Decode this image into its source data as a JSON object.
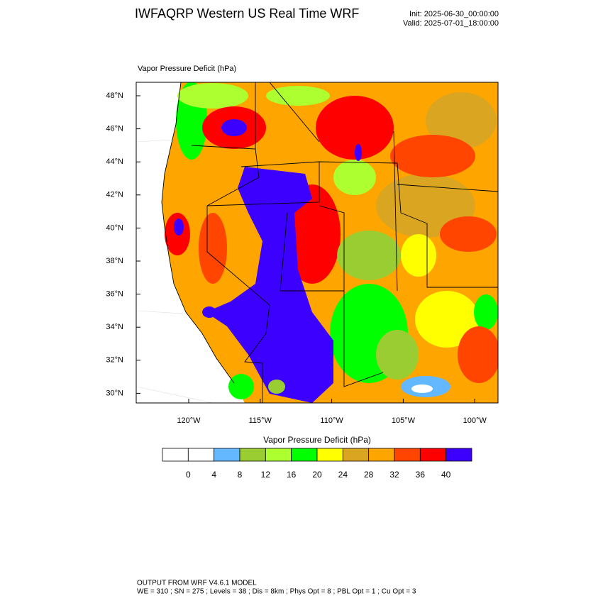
{
  "header": {
    "title": "IWFAQRP Western US Real Time WRF",
    "init": "Init: 2025-06-30_00:00:00",
    "valid": "Valid: 2025-07-01_18:00:00"
  },
  "map": {
    "field_label": "Vapor Pressure Deficit   (hPa)",
    "lat_labels": [
      "48°N",
      "46°N",
      "44°N",
      "42°N",
      "40°N",
      "38°N",
      "36°N",
      "34°N",
      "32°N",
      "30°N"
    ],
    "lon_labels": [
      "120°W",
      "115°W",
      "110°W",
      "105°W",
      "100°W"
    ]
  },
  "colorbar": {
    "title": "Vapor Pressure Deficit  (hPa)",
    "levels": [
      0,
      4,
      8,
      12,
      16,
      20,
      24,
      28,
      32,
      36,
      40
    ],
    "colors": [
      "#ffffff",
      "#ffffff",
      "#63b8ff",
      "#9acd32",
      "#adff2f",
      "#00ff00",
      "#ffff00",
      "#daa520",
      "#ffa500",
      "#ff4500",
      "#ff0000",
      "#3c00ff"
    ]
  },
  "footer": {
    "line1": "OUTPUT FROM WRF V4.6.1 MODEL",
    "line2": "WE = 310 ; SN = 275 ; Levels = 38 ; Dis = 8km ; Phys Opt = 8 ; PBL Opt = 1 ; Cu Opt = 3"
  }
}
